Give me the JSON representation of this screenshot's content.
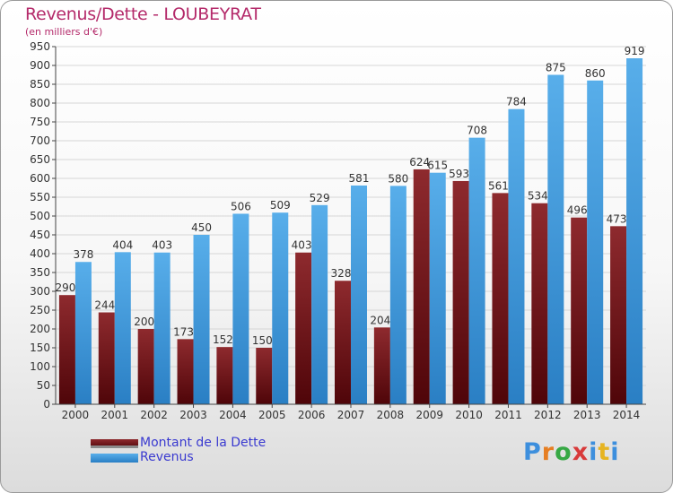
{
  "header": {
    "title": "Revenus/Dette - LOUBEYRAT",
    "subtitle": "(en milliers d'€)"
  },
  "legend": {
    "items": [
      {
        "label": "Montant de la Dette",
        "color": "#6b0f14"
      },
      {
        "label": "Revenus",
        "color": "#3d93d9"
      }
    ]
  },
  "logo": {
    "text": "Proxiti"
  },
  "chart_data": {
    "type": "bar",
    "title": "Revenus/Dette - LOUBEYRAT",
    "subtitle": "(en milliers d'€)",
    "categories": [
      "2000",
      "2001",
      "2002",
      "2003",
      "2004",
      "2005",
      "2006",
      "2007",
      "2008",
      "2009",
      "2010",
      "2011",
      "2012",
      "2013",
      "2014"
    ],
    "series": [
      {
        "name": "Montant de la Dette",
        "color": "#6b0f14",
        "values": [
          290,
          244,
          200,
          173,
          152,
          150,
          403,
          328,
          204,
          624,
          593,
          561,
          534,
          496,
          473
        ]
      },
      {
        "name": "Revenus",
        "color": "#3d93d9",
        "values": [
          378,
          404,
          403,
          450,
          506,
          509,
          529,
          581,
          580,
          615,
          708,
          784,
          875,
          860,
          919
        ]
      }
    ],
    "ylim": [
      0,
      950
    ],
    "ytick_step": 50,
    "grid": true,
    "legend_position": "bottom-left"
  }
}
